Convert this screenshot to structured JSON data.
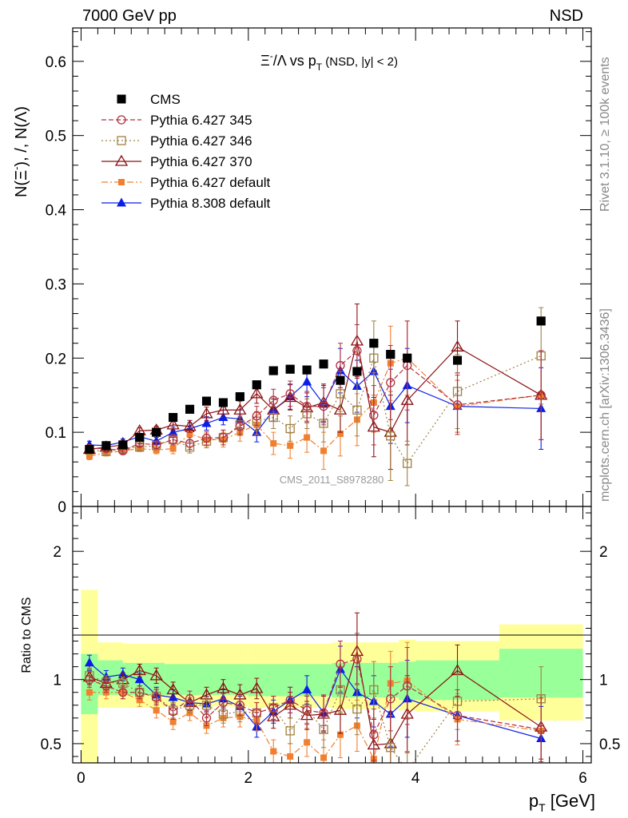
{
  "header": {
    "energy_label": "7000 GeV pp",
    "process_label": "NSD"
  },
  "side_labels": {
    "rivet": "Rivet 3.1.10, ≥ 100k events",
    "mcplots": "mcplots.cern.ch [arXiv:1306.3436]"
  },
  "watermark": "CMS_2011_S8978280",
  "colors": {
    "cms": "#000000",
    "p345": "#b03040",
    "p346": "#a08040",
    "p370": "#8b1010",
    "p6def": "#f08030",
    "p8def": "#0a1ee8",
    "band_outer": "#ffff99",
    "band_inner": "#99ff99"
  },
  "chart_data": [
    {
      "type": "scatter",
      "title": "Ξ⁻/Λ  vs p_T (NSD, |y| < 2)",
      "title_parts": {
        "main": "Ξ",
        "sup": "-",
        "after": "/Λ  vs p",
        "sub": "T",
        "tail": " (NSD, |y| < 2)"
      },
      "ylabel": "N(Ξ⁻), /, N(Λ)",
      "ylabel_parts": {
        "a": "N(Ξ",
        "sup": "-",
        "b": "), /, N(Λ)"
      },
      "xlim": [
        -0.1,
        6.1
      ],
      "ylim": [
        0,
        0.645
      ],
      "yticks": [
        0,
        0.1,
        0.2,
        0.3,
        0.4,
        0.5,
        0.6
      ],
      "ytick_labels": [
        "0",
        "0.1",
        "0.2",
        "0.3",
        "0.4",
        "0.5",
        "0.6"
      ],
      "series": [
        {
          "key": "cms",
          "name": "CMS",
          "marker": "square-filled",
          "x": [
            0.1,
            0.3,
            0.5,
            0.7,
            0.9,
            1.1,
            1.3,
            1.5,
            1.7,
            1.9,
            2.1,
            2.3,
            2.5,
            2.7,
            2.9,
            3.1,
            3.3,
            3.5,
            3.7,
            3.9,
            4.5,
            5.5
          ],
          "y": [
            0.077,
            0.082,
            0.083,
            0.093,
            0.1,
            0.12,
            0.131,
            0.142,
            0.14,
            0.148,
            0.164,
            0.183,
            0.185,
            0.184,
            0.192,
            0.17,
            0.182,
            0.22,
            0.205,
            0.2,
            0.197,
            0.25
          ]
        },
        {
          "key": "p345",
          "name": "Pythia 6.427 345",
          "marker": "circle-open",
          "dash": "6,3",
          "x": [
            0.1,
            0.3,
            0.5,
            0.7,
            0.9,
            1.1,
            1.3,
            1.5,
            1.7,
            1.9,
            2.1,
            2.3,
            2.5,
            2.7,
            2.9,
            3.1,
            3.3,
            3.5,
            3.7,
            3.9,
            4.5,
            5.5
          ],
          "y": [
            0.078,
            0.078,
            0.075,
            0.085,
            0.083,
            0.09,
            0.085,
            0.092,
            0.093,
            0.108,
            0.122,
            0.143,
            0.152,
            0.135,
            0.135,
            0.19,
            0.21,
            0.123,
            0.167,
            0.19,
            0.137,
            0.15
          ],
          "err": [
            0.005,
            0.004,
            0.004,
            0.004,
            0.005,
            0.007,
            0.008,
            0.009,
            0.01,
            0.012,
            0.013,
            0.015,
            0.017,
            0.02,
            0.025,
            0.03,
            0.035,
            0.04,
            0.05,
            0.06,
            0.04,
            0.06
          ]
        },
        {
          "key": "p346",
          "name": "Pythia 6.427 346",
          "marker": "square-open",
          "dash": "2,3",
          "x": [
            0.1,
            0.3,
            0.5,
            0.7,
            0.9,
            1.1,
            1.3,
            1.5,
            1.7,
            1.9,
            2.1,
            2.3,
            2.5,
            2.7,
            2.9,
            3.1,
            3.3,
            3.5,
            3.7,
            3.9,
            4.5,
            5.5
          ],
          "y": [
            0.076,
            0.074,
            0.078,
            0.08,
            0.082,
            0.09,
            0.08,
            0.088,
            0.093,
            0.11,
            0.115,
            0.12,
            0.105,
            0.125,
            0.112,
            0.152,
            0.13,
            0.2,
            0.095,
            0.058,
            0.155,
            0.203
          ],
          "err": [
            0.005,
            0.004,
            0.004,
            0.004,
            0.005,
            0.007,
            0.008,
            0.009,
            0.01,
            0.012,
            0.013,
            0.015,
            0.017,
            0.02,
            0.025,
            0.03,
            0.035,
            0.05,
            0.06,
            0.03,
            0.05,
            0.065
          ]
        },
        {
          "key": "p370",
          "name": "Pythia 6.427 370",
          "marker": "triangle-open",
          "dash": "",
          "x": [
            0.1,
            0.3,
            0.5,
            0.7,
            0.9,
            1.1,
            1.3,
            1.5,
            1.7,
            1.9,
            2.1,
            2.3,
            2.5,
            2.7,
            2.9,
            3.1,
            3.3,
            3.5,
            3.7,
            3.9,
            4.5,
            5.5
          ],
          "y": [
            0.077,
            0.08,
            0.083,
            0.102,
            0.103,
            0.11,
            0.108,
            0.125,
            0.13,
            0.13,
            0.152,
            0.13,
            0.147,
            0.133,
            0.14,
            0.13,
            0.223,
            0.107,
            0.1,
            0.143,
            0.215,
            0.15
          ],
          "err": [
            0.005,
            0.004,
            0.004,
            0.004,
            0.005,
            0.007,
            0.008,
            0.009,
            0.01,
            0.012,
            0.013,
            0.015,
            0.017,
            0.02,
            0.025,
            0.03,
            0.05,
            0.04,
            0.05,
            0.06,
            0.035,
            0.06
          ]
        },
        {
          "key": "p6def",
          "name": "Pythia 6.427 default",
          "marker": "square-small",
          "dash": "8,3,2,3",
          "x": [
            0.1,
            0.3,
            0.5,
            0.7,
            0.9,
            1.1,
            1.3,
            1.5,
            1.7,
            1.9,
            2.1,
            2.3,
            2.5,
            2.7,
            2.9,
            3.1,
            3.3,
            3.5,
            3.7,
            3.9,
            4.5,
            5.5
          ],
          "y": [
            0.068,
            0.072,
            0.075,
            0.078,
            0.076,
            0.078,
            0.098,
            0.09,
            0.09,
            0.1,
            0.11,
            0.085,
            0.082,
            0.093,
            0.075,
            0.098,
            0.117,
            0.14,
            0.193,
            0.2,
            0.135,
            0.15
          ],
          "err": [
            0.005,
            0.004,
            0.004,
            0.004,
            0.005,
            0.007,
            0.008,
            0.009,
            0.01,
            0.012,
            0.013,
            0.015,
            0.017,
            0.02,
            0.025,
            0.03,
            0.035,
            0.04,
            0.05,
            0.05,
            0.035,
            0.06
          ]
        },
        {
          "key": "p8def",
          "name": "Pythia 8.308 default",
          "marker": "triangle-filled",
          "dash": "",
          "x": [
            0.1,
            0.3,
            0.5,
            0.7,
            0.9,
            1.1,
            1.3,
            1.5,
            1.7,
            1.9,
            2.1,
            2.3,
            2.5,
            2.7,
            2.9,
            3.1,
            3.3,
            3.5,
            3.7,
            3.9,
            4.5,
            5.5
          ],
          "y": [
            0.083,
            0.082,
            0.087,
            0.094,
            0.088,
            0.1,
            0.105,
            0.112,
            0.12,
            0.118,
            0.1,
            0.13,
            0.148,
            0.168,
            0.138,
            0.183,
            0.162,
            0.182,
            0.135,
            0.163,
            0.135,
            0.132
          ],
          "err": [
            0.005,
            0.004,
            0.004,
            0.004,
            0.005,
            0.007,
            0.008,
            0.009,
            0.01,
            0.012,
            0.013,
            0.015,
            0.017,
            0.02,
            0.025,
            0.03,
            0.035,
            0.04,
            0.05,
            0.05,
            0.035,
            0.055
          ]
        }
      ]
    },
    {
      "type": "scatter",
      "title": "Ratio to CMS",
      "ylabel": "Ratio to CMS",
      "xlabel": "p_T [GeV]",
      "xlabel_parts": {
        "a": "p",
        "sub": "T",
        "b": " [GeV]"
      },
      "xlim": [
        -0.1,
        6.1
      ],
      "ylim": [
        0.35,
        2.35
      ],
      "yticks": [
        0.5,
        1,
        2
      ],
      "ytick_labels": [
        "0.5",
        "1",
        "2"
      ],
      "xticks": [
        0,
        2,
        4,
        6
      ],
      "xtick_labels": [
        "0",
        "2",
        "4",
        "6"
      ],
      "bands": [
        {
          "x0": 0.0,
          "x1": 0.2,
          "outer": [
            0.3,
            1.7
          ],
          "inner": [
            0.73,
            1.2
          ]
        },
        {
          "x0": 0.2,
          "x1": 0.5,
          "outer": [
            0.78,
            1.29
          ],
          "inner": [
            0.88,
            1.15
          ]
        },
        {
          "x0": 0.5,
          "x1": 1.0,
          "outer": [
            0.78,
            1.28
          ],
          "inner": [
            0.88,
            1.13
          ]
        },
        {
          "x0": 1.0,
          "x1": 2.0,
          "outer": [
            0.79,
            1.28
          ],
          "inner": [
            0.88,
            1.12
          ]
        },
        {
          "x0": 2.0,
          "x1": 3.0,
          "outer": [
            0.78,
            1.28
          ],
          "inner": [
            0.87,
            1.12
          ]
        },
        {
          "x0": 3.0,
          "x1": 3.8,
          "outer": [
            0.77,
            1.29
          ],
          "inner": [
            0.86,
            1.13
          ]
        },
        {
          "x0": 3.8,
          "x1": 4.0,
          "outer": [
            0.76,
            1.31
          ],
          "inner": [
            0.84,
            1.14
          ]
        },
        {
          "x0": 4.0,
          "x1": 5.0,
          "outer": [
            0.75,
            1.3
          ],
          "inner": [
            0.84,
            1.15
          ]
        },
        {
          "x0": 5.0,
          "x1": 6.0,
          "outer": [
            0.68,
            1.43
          ],
          "inner": [
            0.86,
            1.24
          ]
        }
      ],
      "series": [
        {
          "key": "p345",
          "x": [
            0.1,
            0.3,
            0.5,
            0.7,
            0.9,
            1.1,
            1.3,
            1.5,
            1.7,
            1.9,
            2.1,
            2.3,
            2.5,
            2.7,
            2.9,
            3.1,
            3.3,
            3.5,
            3.7,
            3.9,
            4.5,
            5.5
          ],
          "y": [
            1.0,
            0.95,
            0.9,
            0.9,
            0.86,
            0.75,
            0.85,
            0.7,
            0.82,
            0.8,
            0.74,
            0.78,
            0.84,
            0.76,
            0.74,
            1.12,
            1.16,
            0.57,
            0.85,
            0.95,
            0.72,
            0.61
          ],
          "err": [
            0.06,
            0.05,
            0.05,
            0.05,
            0.06,
            0.06,
            0.06,
            0.06,
            0.07,
            0.08,
            0.08,
            0.09,
            0.1,
            0.11,
            0.14,
            0.18,
            0.2,
            0.2,
            0.25,
            0.3,
            0.2,
            0.25
          ]
        },
        {
          "key": "p346",
          "x": [
            0.1,
            0.3,
            0.5,
            0.7,
            0.9,
            1.1,
            1.3,
            1.5,
            1.7,
            1.9,
            2.1,
            2.3,
            2.5,
            2.7,
            2.9,
            3.1,
            3.3,
            3.5,
            3.7,
            3.9,
            4.5,
            5.5
          ],
          "y": [
            1.03,
            0.98,
            0.97,
            0.9,
            0.87,
            0.76,
            0.8,
            0.8,
            0.73,
            0.75,
            0.74,
            0.78,
            0.6,
            0.77,
            0.61,
            0.92,
            0.77,
            0.92,
            0.47,
            0.29,
            0.83,
            0.85
          ],
          "err": [
            0.06,
            0.05,
            0.05,
            0.05,
            0.06,
            0.06,
            0.06,
            0.06,
            0.07,
            0.08,
            0.08,
            0.09,
            0.1,
            0.11,
            0.14,
            0.18,
            0.2,
            0.22,
            0.25,
            0.15,
            0.22,
            0.25
          ]
        },
        {
          "key": "p370",
          "x": [
            0.1,
            0.3,
            0.5,
            0.7,
            0.9,
            1.1,
            1.3,
            1.5,
            1.7,
            1.9,
            2.1,
            2.3,
            2.5,
            2.7,
            2.9,
            3.1,
            3.3,
            3.5,
            3.7,
            3.9,
            4.5,
            5.5
          ],
          "y": [
            1.02,
            0.97,
            1.0,
            1.07,
            1.03,
            0.92,
            0.82,
            0.88,
            0.93,
            0.88,
            0.93,
            0.71,
            0.8,
            0.72,
            0.73,
            0.76,
            1.22,
            0.49,
            0.5,
            0.73,
            1.07,
            0.63
          ],
          "err": [
            0.06,
            0.05,
            0.05,
            0.05,
            0.06,
            0.06,
            0.06,
            0.06,
            0.07,
            0.08,
            0.08,
            0.09,
            0.1,
            0.11,
            0.14,
            0.18,
            0.3,
            0.2,
            0.25,
            0.3,
            0.2,
            0.25
          ]
        },
        {
          "key": "p6def",
          "x": [
            0.1,
            0.3,
            0.5,
            0.7,
            0.9,
            1.1,
            1.3,
            1.5,
            1.7,
            1.9,
            2.1,
            2.3,
            2.5,
            2.7,
            2.9,
            3.1,
            3.3,
            3.5,
            3.7,
            3.9,
            4.5,
            5.5
          ],
          "y": [
            0.9,
            0.9,
            0.9,
            0.84,
            0.76,
            0.67,
            0.74,
            0.64,
            0.7,
            0.71,
            0.68,
            0.44,
            0.4,
            0.51,
            0.39,
            0.57,
            0.64,
            0.38,
            0.97,
            0.99,
            0.69,
            0.6
          ],
          "err": [
            0.06,
            0.05,
            0.05,
            0.05,
            0.06,
            0.06,
            0.06,
            0.06,
            0.07,
            0.08,
            0.08,
            0.09,
            0.1,
            0.11,
            0.14,
            0.18,
            0.2,
            0.2,
            0.25,
            0.3,
            0.2,
            0.25
          ]
        },
        {
          "key": "p8def",
          "x": [
            0.1,
            0.3,
            0.5,
            0.7,
            0.9,
            1.1,
            1.3,
            1.5,
            1.7,
            1.9,
            2.1,
            2.3,
            2.5,
            2.7,
            2.9,
            3.1,
            3.3,
            3.5,
            3.7,
            3.9,
            4.5,
            5.5
          ],
          "y": [
            1.13,
            1.02,
            1.04,
            1.0,
            0.88,
            0.86,
            0.82,
            0.81,
            0.85,
            0.79,
            0.63,
            0.75,
            0.84,
            0.92,
            0.74,
            1.08,
            0.9,
            0.83,
            0.73,
            0.85,
            0.72,
            0.54
          ],
          "err": [
            0.06,
            0.05,
            0.05,
            0.05,
            0.06,
            0.06,
            0.06,
            0.06,
            0.07,
            0.08,
            0.08,
            0.09,
            0.1,
            0.11,
            0.14,
            0.18,
            0.2,
            0.2,
            0.25,
            0.3,
            0.2,
            0.25
          ]
        }
      ]
    }
  ]
}
